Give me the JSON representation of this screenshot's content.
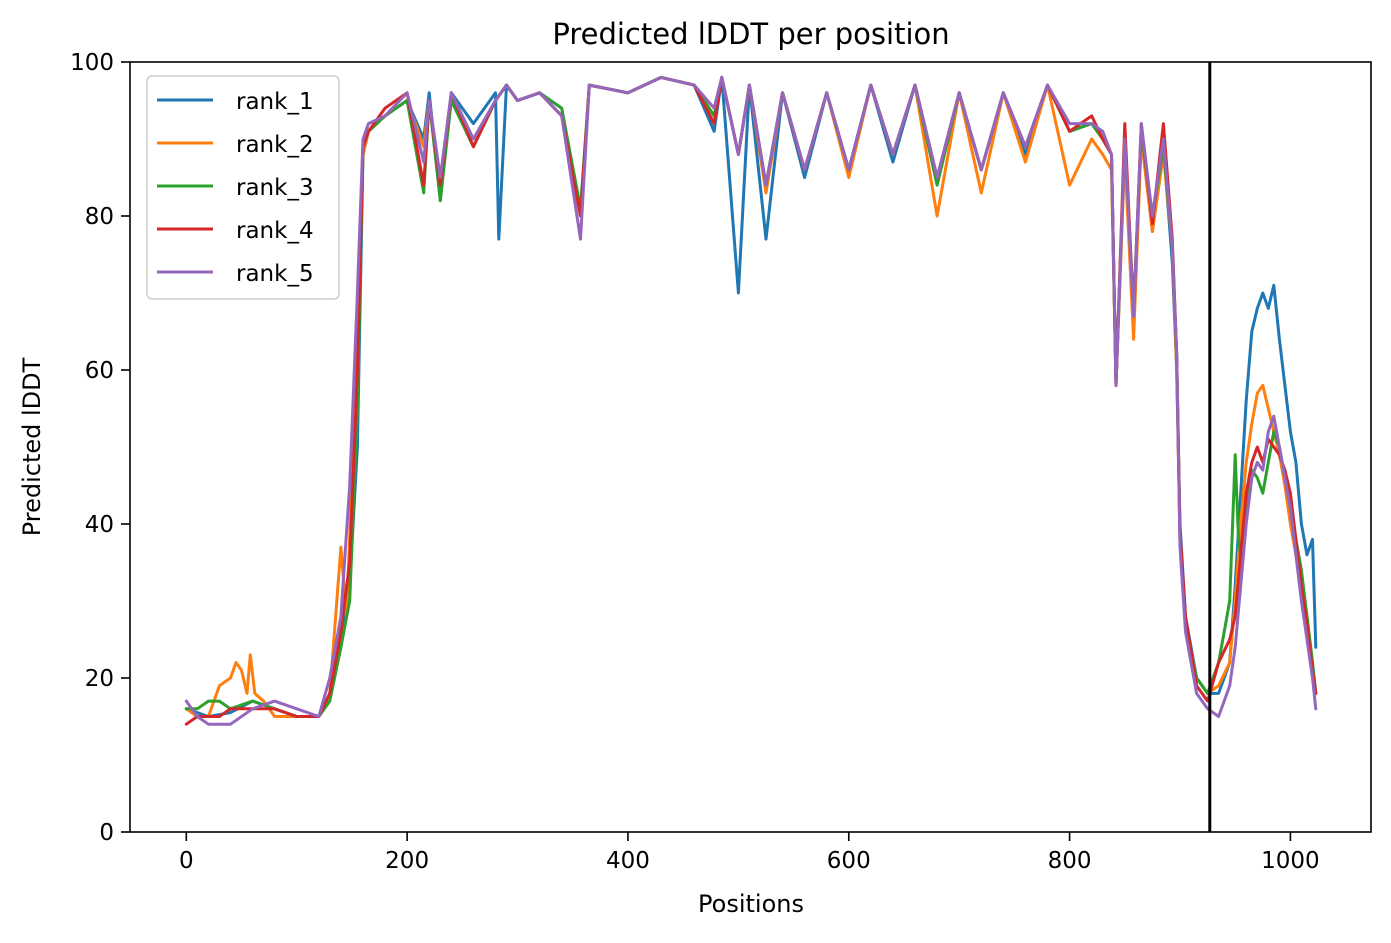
{
  "chart_data": {
    "type": "line",
    "title": "Predicted lDDT per position",
    "xlabel": "Positions",
    "ylabel": "Predicted lDDT",
    "xlim": [
      -51,
      1073
    ],
    "ylim": [
      0,
      100
    ],
    "xticks": [
      0,
      200,
      400,
      600,
      800,
      1000
    ],
    "yticks": [
      0,
      20,
      40,
      60,
      80,
      100
    ],
    "vline_x": 927,
    "legend": "top-left",
    "grid": false,
    "series": [
      {
        "name": "rank_1",
        "color": "#1f77b4",
        "x": [
          0,
          20,
          40,
          60,
          80,
          100,
          120,
          130,
          140,
          148,
          155,
          160,
          165,
          180,
          200,
          215,
          220,
          230,
          240,
          260,
          280,
          283,
          290,
          300,
          320,
          340,
          357,
          365,
          400,
          430,
          460,
          478,
          485,
          500,
          510,
          525,
          540,
          560,
          580,
          600,
          620,
          640,
          660,
          680,
          700,
          720,
          740,
          760,
          780,
          800,
          820,
          830,
          838,
          842,
          850,
          858,
          865,
          875,
          885,
          893,
          897,
          900,
          905,
          915,
          925,
          935,
          945,
          950,
          955,
          960,
          965,
          970,
          975,
          980,
          985,
          990,
          995,
          1000,
          1005,
          1010,
          1015,
          1020,
          1023
        ],
        "y": [
          16,
          15,
          15.5,
          17,
          16,
          15,
          15,
          18,
          24,
          32,
          50,
          88,
          91,
          93,
          95,
          90,
          96,
          82,
          96,
          92,
          96,
          77,
          97,
          95,
          96,
          94,
          80,
          97,
          96,
          98,
          97,
          91,
          98,
          70,
          97,
          77,
          96,
          85,
          96,
          86,
          97,
          87,
          97,
          85,
          96,
          86,
          96,
          88,
          97,
          91,
          92,
          90,
          88,
          58,
          90,
          66,
          91,
          78,
          89,
          74,
          60,
          40,
          28,
          20,
          18,
          18,
          22,
          32,
          44,
          56,
          65,
          68,
          70,
          68,
          71,
          64,
          58,
          52,
          48,
          40,
          36,
          38,
          24
        ]
      },
      {
        "name": "rank_2",
        "color": "#ff7f0e",
        "x": [
          0,
          10,
          20,
          30,
          40,
          45,
          50,
          55,
          58,
          62,
          70,
          80,
          100,
          120,
          130,
          140,
          145,
          150,
          155,
          160,
          165,
          180,
          200,
          215,
          220,
          230,
          240,
          260,
          280,
          290,
          300,
          320,
          340,
          357,
          365,
          400,
          430,
          460,
          478,
          485,
          500,
          510,
          525,
          540,
          560,
          580,
          600,
          620,
          640,
          660,
          680,
          700,
          720,
          740,
          760,
          780,
          800,
          820,
          830,
          838,
          842,
          850,
          858,
          865,
          875,
          885,
          893,
          897,
          900,
          905,
          915,
          925,
          935,
          945,
          950,
          955,
          960,
          965,
          970,
          975,
          980,
          985,
          990,
          995,
          1000,
          1005,
          1010,
          1015,
          1020,
          1023
        ],
        "y": [
          16,
          15,
          15,
          19,
          20,
          22,
          21,
          18,
          23,
          18,
          17,
          15,
          15,
          15,
          18,
          37,
          28,
          45,
          65,
          88,
          91,
          93,
          95,
          89,
          95,
          84,
          95,
          90,
          95,
          97,
          95,
          96,
          93,
          80,
          97,
          96,
          98,
          97,
          93,
          98,
          88,
          97,
          83,
          96,
          86,
          96,
          85,
          97,
          88,
          97,
          80,
          96,
          83,
          96,
          87,
          97,
          84,
          90,
          88,
          86,
          58,
          88,
          64,
          90,
          78,
          88,
          76,
          60,
          38,
          27,
          20,
          18,
          19,
          22,
          30,
          40,
          48,
          53,
          57,
          58,
          55,
          52,
          49,
          45,
          40,
          36,
          32,
          28,
          22,
          18
        ]
      },
      {
        "name": "rank_3",
        "color": "#2ca02c",
        "x": [
          0,
          10,
          20,
          30,
          40,
          60,
          80,
          100,
          120,
          130,
          140,
          148,
          155,
          160,
          165,
          180,
          200,
          215,
          220,
          230,
          240,
          260,
          280,
          290,
          300,
          320,
          340,
          357,
          365,
          400,
          430,
          460,
          478,
          485,
          500,
          510,
          525,
          540,
          560,
          580,
          600,
          620,
          640,
          660,
          680,
          700,
          720,
          740,
          760,
          780,
          800,
          820,
          830,
          838,
          842,
          850,
          858,
          865,
          875,
          885,
          893,
          897,
          900,
          905,
          915,
          925,
          935,
          940,
          945,
          950,
          953,
          956,
          960,
          965,
          970,
          975,
          980,
          985,
          990,
          995,
          1000,
          1005,
          1010,
          1015,
          1020,
          1023
        ],
        "y": [
          16,
          16,
          17,
          17,
          16,
          17,
          16,
          15,
          15,
          17,
          24,
          30,
          55,
          89,
          91,
          93,
          95,
          83,
          95,
          82,
          95,
          89,
          95,
          97,
          95,
          96,
          94,
          81,
          97,
          96,
          98,
          97,
          93,
          98,
          88,
          97,
          84,
          96,
          86,
          96,
          86,
          97,
          88,
          97,
          84,
          96,
          86,
          96,
          89,
          97,
          91,
          92,
          90,
          88,
          58,
          90,
          68,
          91,
          80,
          89,
          76,
          62,
          38,
          27,
          20,
          18,
          22,
          26,
          30,
          49,
          38,
          35,
          42,
          47,
          46,
          44,
          48,
          52,
          50,
          46,
          42,
          38,
          34,
          28,
          22,
          18
        ]
      },
      {
        "name": "rank_4",
        "color": "#d62728",
        "x": [
          0,
          10,
          20,
          30,
          40,
          60,
          80,
          100,
          120,
          130,
          140,
          148,
          155,
          160,
          165,
          180,
          200,
          215,
          220,
          230,
          240,
          260,
          280,
          290,
          300,
          320,
          340,
          357,
          365,
          400,
          430,
          460,
          478,
          485,
          500,
          510,
          525,
          540,
          560,
          580,
          600,
          620,
          640,
          660,
          680,
          700,
          720,
          740,
          760,
          780,
          800,
          820,
          830,
          838,
          842,
          850,
          858,
          865,
          875,
          885,
          893,
          897,
          900,
          905,
          915,
          925,
          935,
          945,
          950,
          955,
          960,
          965,
          970,
          975,
          980,
          985,
          990,
          995,
          1000,
          1005,
          1010,
          1015,
          1020,
          1023
        ],
        "y": [
          14,
          15,
          15,
          15,
          16,
          16,
          16,
          15,
          15,
          18,
          26,
          35,
          60,
          89,
          91,
          94,
          96,
          84,
          95,
          84,
          96,
          89,
          95,
          97,
          95,
          96,
          93,
          80,
          97,
          96,
          98,
          97,
          92,
          98,
          88,
          97,
          84,
          96,
          86,
          96,
          86,
          97,
          88,
          97,
          85,
          96,
          86,
          96,
          89,
          97,
          91,
          93,
          90,
          88,
          58,
          92,
          67,
          92,
          79,
          92,
          77,
          62,
          39,
          28,
          19,
          17,
          22,
          25,
          28,
          36,
          44,
          48,
          50,
          48,
          51,
          50,
          49,
          47,
          44,
          38,
          32,
          27,
          21,
          18
        ]
      },
      {
        "name": "rank_5",
        "color": "#9467bd",
        "x": [
          0,
          10,
          20,
          30,
          40,
          60,
          80,
          100,
          120,
          130,
          140,
          148,
          155,
          160,
          165,
          180,
          200,
          215,
          220,
          230,
          240,
          260,
          280,
          290,
          300,
          320,
          340,
          357,
          365,
          400,
          430,
          460,
          478,
          485,
          500,
          510,
          525,
          540,
          560,
          580,
          600,
          620,
          640,
          660,
          680,
          700,
          720,
          740,
          760,
          780,
          800,
          820,
          830,
          838,
          842,
          850,
          858,
          865,
          875,
          885,
          893,
          897,
          900,
          905,
          915,
          925,
          935,
          945,
          950,
          955,
          960,
          965,
          970,
          975,
          980,
          985,
          990,
          995,
          1000,
          1005,
          1010,
          1015,
          1020,
          1023
        ],
        "y": [
          17,
          15,
          14,
          14,
          14,
          16,
          17,
          16,
          15,
          20,
          28,
          45,
          70,
          90,
          92,
          93,
          96,
          87,
          95,
          85,
          96,
          90,
          95,
          97,
          95,
          96,
          93,
          77,
          97,
          96,
          98,
          97,
          94,
          98,
          88,
          97,
          84,
          96,
          86,
          96,
          86,
          97,
          88,
          97,
          85,
          96,
          86,
          96,
          89,
          97,
          92,
          92,
          91,
          88,
          58,
          90,
          67,
          92,
          80,
          90,
          76,
          62,
          37,
          26,
          18,
          16,
          15,
          19,
          24,
          32,
          40,
          46,
          48,
          47,
          52,
          54,
          50,
          46,
          42,
          36,
          30,
          25,
          20,
          16
        ]
      }
    ]
  }
}
